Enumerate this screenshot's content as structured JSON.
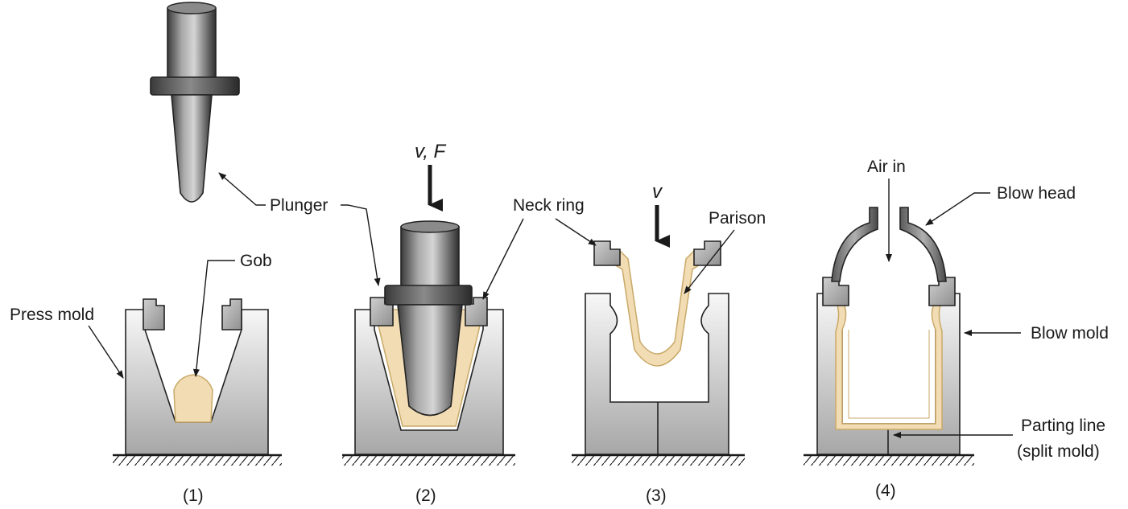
{
  "labels": {
    "plunger": "Plunger",
    "gob": "Gob",
    "press_mold": "Press mold",
    "v_f": "v, F",
    "neck_ring": "Neck ring",
    "v": "v",
    "parison": "Parison",
    "air_in": "Air in",
    "blow_head": "Blow head",
    "blow_mold": "Blow mold",
    "parting_line": "Parting line",
    "split_mold": "(split mold)"
  },
  "steps": [
    "(1)",
    "(2)",
    "(3)",
    "(4)"
  ],
  "colors": {
    "glass": "#f1dcb4",
    "glass_edge": "#c9a968",
    "mold_light": "#f2f2f2",
    "mold_dark": "#a9a9a9",
    "plunger_dark": "#3a3a3a",
    "ring_fill": "#9c9c9c"
  }
}
